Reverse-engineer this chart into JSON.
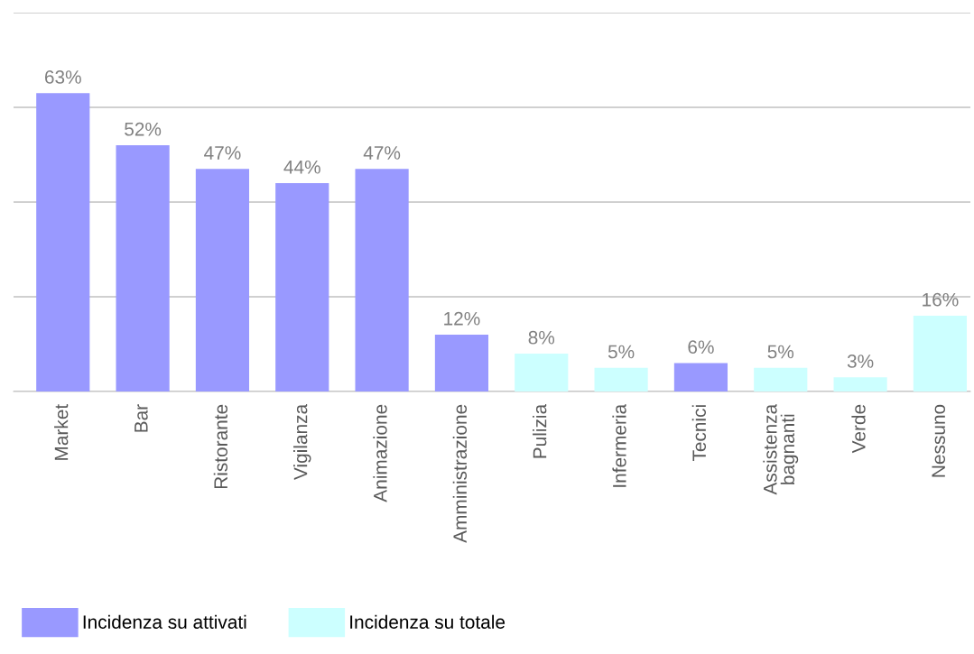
{
  "chart_data": {
    "type": "bar",
    "stacked": true,
    "categories": [
      "Market",
      "Bar",
      "Ristorante",
      "Vigilanza",
      "Animazione",
      "Amministrazione",
      "Pulizia",
      "Infermeria",
      "Tecnici",
      "Assistenza\nbagnanti",
      "Verde",
      "Nessuno"
    ],
    "series": [
      {
        "name": "Incidenza su attivati",
        "color": "#9999ff",
        "values": [
          63,
          52,
          47,
          44,
          47,
          12,
          null,
          null,
          6,
          null,
          null,
          null
        ],
        "value_labels": [
          "63%",
          "52%",
          "47%",
          "44%",
          "47%",
          "12%",
          null,
          null,
          "6%",
          null,
          null,
          null
        ]
      },
      {
        "name": "Incidenza su totale",
        "color": "#ccffff",
        "values": [
          null,
          null,
          null,
          null,
          null,
          null,
          8,
          5,
          null,
          5,
          3,
          16
        ],
        "value_labels": [
          null,
          null,
          null,
          null,
          null,
          null,
          "8%",
          "5%",
          null,
          "5%",
          "3%",
          "16%"
        ]
      }
    ],
    "ylim": [
      0,
      80
    ],
    "yticks": [
      {
        "value": 0,
        "label": null
      },
      {
        "value": 20,
        "label": null
      },
      {
        "value": 40,
        "label": null
      },
      {
        "value": 60,
        "label": null
      },
      {
        "value": 80,
        "label": null
      }
    ],
    "tick_labels": "x",
    "grid": "y",
    "legend": "bottom left"
  }
}
